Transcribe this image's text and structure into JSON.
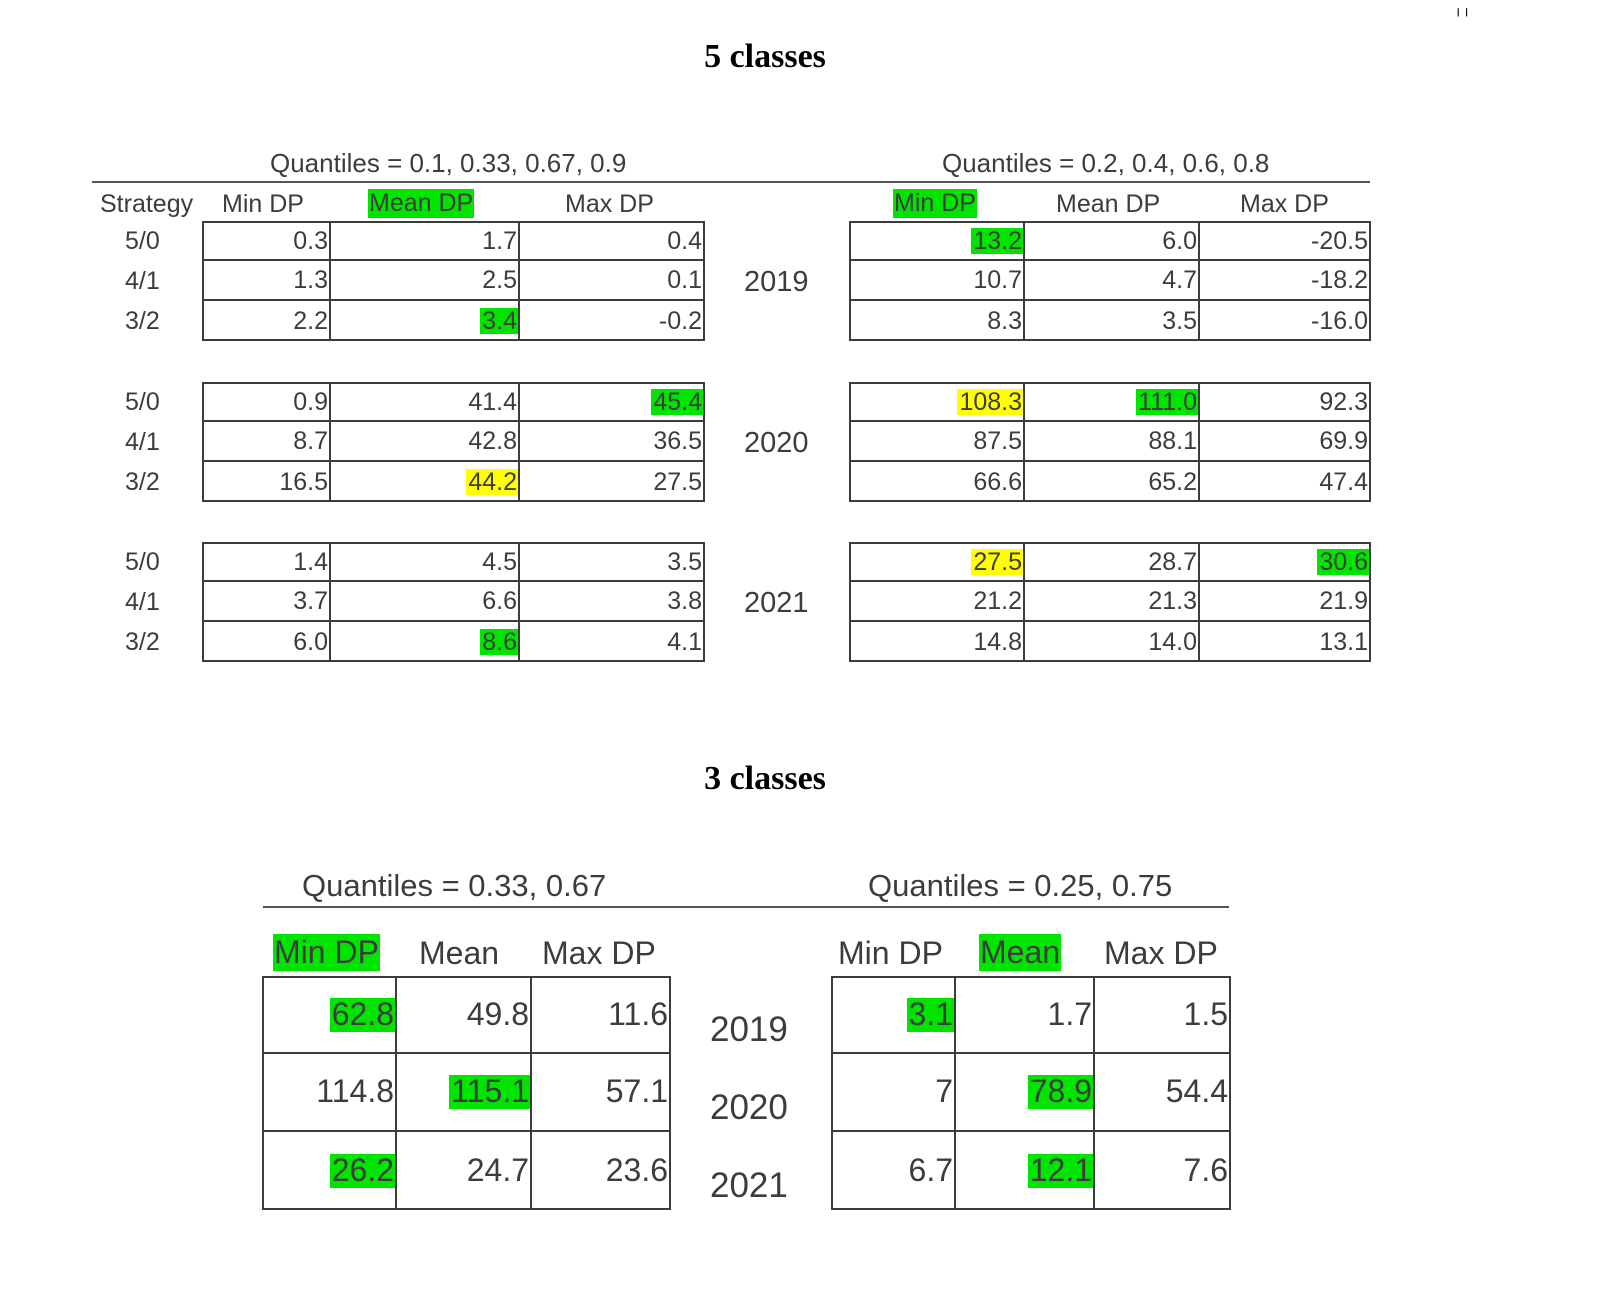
{
  "colors": {
    "green": "#00e400",
    "yellow": "#ffff00"
  },
  "five": {
    "title": "5 classes",
    "left_quantiles": "Quantiles = 0.1, 0.33, 0.67, 0.9",
    "right_quantiles": "Quantiles = 0.2, 0.4, 0.6, 0.8",
    "strategy_header": "Strategy",
    "left_headers": [
      "Min DP",
      "Mean DP",
      "Max DP"
    ],
    "right_headers": [
      "Min DP",
      "Mean DP",
      "Max DP"
    ],
    "strategies": [
      "5/0",
      "4/1",
      "3/2"
    ],
    "years": [
      "2019",
      "2020",
      "2021"
    ],
    "left": [
      [
        [
          "0.3",
          "",
          "1.7",
          "",
          "0.4",
          ""
        ],
        [
          "1.3",
          "",
          "2.5",
          "",
          "0.1",
          ""
        ],
        [
          "2.2",
          "",
          "3.4",
          "g",
          "-0.2",
          ""
        ]
      ],
      [
        [
          "0.9",
          "",
          "41.4",
          "",
          "45.4",
          "g"
        ],
        [
          "8.7",
          "",
          "42.8",
          "",
          "36.5",
          ""
        ],
        [
          "16.5",
          "",
          "44.2",
          "y",
          "27.5",
          ""
        ]
      ],
      [
        [
          "1.4",
          "",
          "4.5",
          "",
          "3.5",
          ""
        ],
        [
          "3.7",
          "",
          "6.6",
          "",
          "3.8",
          ""
        ],
        [
          "6.0",
          "",
          "8.6",
          "g",
          "4.1",
          ""
        ]
      ]
    ],
    "right": [
      [
        [
          "13.2",
          "g",
          "6.0",
          "",
          "-20.5",
          ""
        ],
        [
          "10.7",
          "",
          "4.7",
          "",
          "-18.2",
          ""
        ],
        [
          "8.3",
          "",
          "3.5",
          "",
          "-16.0",
          ""
        ]
      ],
      [
        [
          "108.3",
          "y",
          "111.0",
          "g",
          "92.3",
          ""
        ],
        [
          "87.5",
          "",
          "88.1",
          "",
          "69.9",
          ""
        ],
        [
          "66.6",
          "",
          "65.2",
          "",
          "47.4",
          ""
        ]
      ],
      [
        [
          "27.5",
          "y",
          "28.7",
          "",
          "30.6",
          "g"
        ],
        [
          "21.2",
          "",
          "21.3",
          "",
          "21.9",
          ""
        ],
        [
          "14.8",
          "",
          "14.0",
          "",
          "13.1",
          ""
        ]
      ]
    ]
  },
  "three": {
    "title": "3 classes",
    "left_quantiles": "Quantiles = 0.33, 0.67",
    "right_quantiles": "Quantiles = 0.25, 0.75",
    "left_headers": [
      "Min DP",
      "Mean",
      "Max DP"
    ],
    "right_headers": [
      "Min DP",
      "Mean",
      "Max DP"
    ],
    "years": [
      "2019",
      "2020",
      "2021"
    ],
    "left": [
      [
        "62.8",
        "g",
        "49.8",
        "",
        "11.6",
        ""
      ],
      [
        "114.8",
        "",
        "115.1",
        "g",
        "57.1",
        ""
      ],
      [
        "26.2",
        "g",
        "24.7",
        "",
        "23.6",
        ""
      ]
    ],
    "right": [
      [
        "3.1",
        "g",
        "1.7",
        "",
        "1.5",
        ""
      ],
      [
        "7",
        "",
        "78.9",
        "g",
        "54.4",
        ""
      ],
      [
        "6.7",
        "",
        "12.1",
        "g",
        "7.6",
        ""
      ]
    ]
  }
}
